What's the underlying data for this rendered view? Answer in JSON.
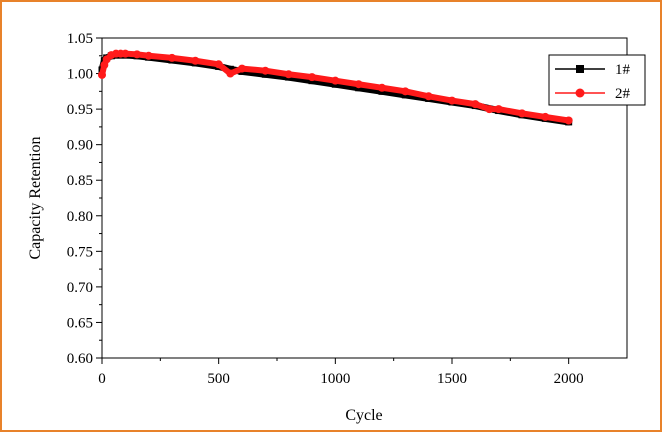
{
  "frame_color": "#e8822a",
  "chart_data": {
    "type": "line",
    "xlabel": "Cycle",
    "ylabel": "Capacity Retention",
    "xlim": [
      0,
      2250
    ],
    "ylim": [
      0.6,
      1.05
    ],
    "x_ticks": [
      0,
      500,
      1000,
      1500,
      2000
    ],
    "x_tick_labels": [
      "0",
      "500",
      "1000",
      "1500",
      "2000"
    ],
    "y_ticks": [
      0.6,
      0.65,
      0.7,
      0.75,
      0.8,
      0.85,
      0.9,
      0.95,
      1.0,
      1.05
    ],
    "y_tick_labels": [
      "0.60",
      "0.65",
      "0.70",
      "0.75",
      "0.80",
      "0.85",
      "0.90",
      "0.95",
      "1.00",
      "1.05"
    ],
    "legend_position": "top-right",
    "series": [
      {
        "name": "1#",
        "color": "#000000",
        "marker": "square",
        "x": [
          0,
          10,
          20,
          40,
          60,
          80,
          100,
          150,
          200,
          300,
          400,
          500,
          550,
          600,
          700,
          800,
          900,
          1000,
          1100,
          1200,
          1300,
          1400,
          1500,
          1600,
          1700,
          1800,
          1900,
          2000
        ],
        "y": [
          1.005,
          1.018,
          1.022,
          1.025,
          1.026,
          1.026,
          1.026,
          1.025,
          1.023,
          1.019,
          1.015,
          1.01,
          1.006,
          1.003,
          0.999,
          0.995,
          0.99,
          0.985,
          0.98,
          0.975,
          0.97,
          0.965,
          0.96,
          0.955,
          0.948,
          0.942,
          0.937,
          0.932
        ]
      },
      {
        "name": "2#",
        "color": "#ff1a1a",
        "marker": "circle",
        "x": [
          0,
          10,
          20,
          40,
          60,
          80,
          100,
          150,
          200,
          300,
          400,
          500,
          550,
          600,
          700,
          800,
          900,
          1000,
          1100,
          1200,
          1300,
          1400,
          1500,
          1600,
          1660,
          1700,
          1800,
          1900,
          2000
        ],
        "y": [
          0.998,
          1.012,
          1.02,
          1.026,
          1.028,
          1.028,
          1.028,
          1.027,
          1.025,
          1.022,
          1.018,
          1.013,
          1.0,
          1.007,
          1.004,
          0.999,
          0.995,
          0.99,
          0.985,
          0.98,
          0.975,
          0.968,
          0.962,
          0.957,
          0.95,
          0.95,
          0.944,
          0.939,
          0.934
        ]
      }
    ]
  }
}
